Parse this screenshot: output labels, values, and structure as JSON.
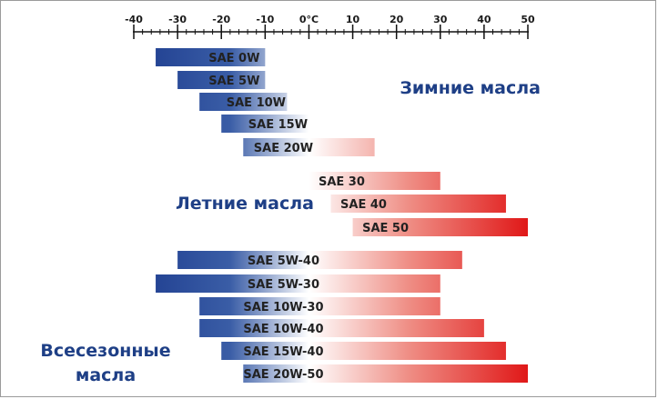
{
  "chart_data": {
    "type": "bar",
    "orientation": "horizontal-range",
    "xlim": [
      -40,
      50
    ],
    "x_ticks": [
      {
        "value": -40,
        "label": "-40"
      },
      {
        "value": -30,
        "label": "-30"
      },
      {
        "value": -20,
        "label": "-20"
      },
      {
        "value": -10,
        "label": "-10"
      },
      {
        "value": 0,
        "label": "0°C"
      },
      {
        "value": 10,
        "label": "10"
      },
      {
        "value": 20,
        "label": "20"
      },
      {
        "value": 30,
        "label": "30"
      },
      {
        "value": 40,
        "label": "40"
      },
      {
        "value": 50,
        "label": "50"
      }
    ],
    "minor_tick_step": 2,
    "groups": [
      {
        "label_lines": [
          "Зимние масла"
        ],
        "label_anchor": "end",
        "bars": [
          {
            "label": "SAE 0W",
            "from": -35,
            "to": -10
          },
          {
            "label": "SAE 5W",
            "from": -30,
            "to": -10
          },
          {
            "label": "SAE 10W",
            "from": -25,
            "to": -5
          },
          {
            "label": "SAE 15W",
            "from": -20,
            "to": 0
          },
          {
            "label": "SAE 20W",
            "from": -15,
            "to": 15
          }
        ]
      },
      {
        "label_lines": [
          "Летние масла"
        ],
        "label_anchor": "middle",
        "bars": [
          {
            "label": "SAE 30",
            "from": 0,
            "to": 30
          },
          {
            "label": "SAE 40",
            "from": 5,
            "to": 45
          },
          {
            "label": "SAE 50",
            "from": 10,
            "to": 50
          }
        ]
      },
      {
        "label_lines": [
          "Всесезонные",
          "масла"
        ],
        "label_anchor": "middle",
        "bars": [
          {
            "label": "SAE 5W-40",
            "from": -30,
            "to": 35
          },
          {
            "label": "SAE 5W-30",
            "from": -35,
            "to": 30
          },
          {
            "label": "SAE 10W-30",
            "from": -25,
            "to": 30
          },
          {
            "label": "SAE 10W-40",
            "from": -25,
            "to": 40
          },
          {
            "label": "SAE 15W-40",
            "from": -20,
            "to": 45
          },
          {
            "label": "SAE 20W-50",
            "from": -15,
            "to": 50
          }
        ]
      }
    ],
    "colors": {
      "cold": "#1e3d8f",
      "neutral": "#ffffff",
      "hot": "#e01818",
      "group_label": "#1e3f86",
      "axis": "#111111"
    },
    "grid": false,
    "legend": "none"
  }
}
